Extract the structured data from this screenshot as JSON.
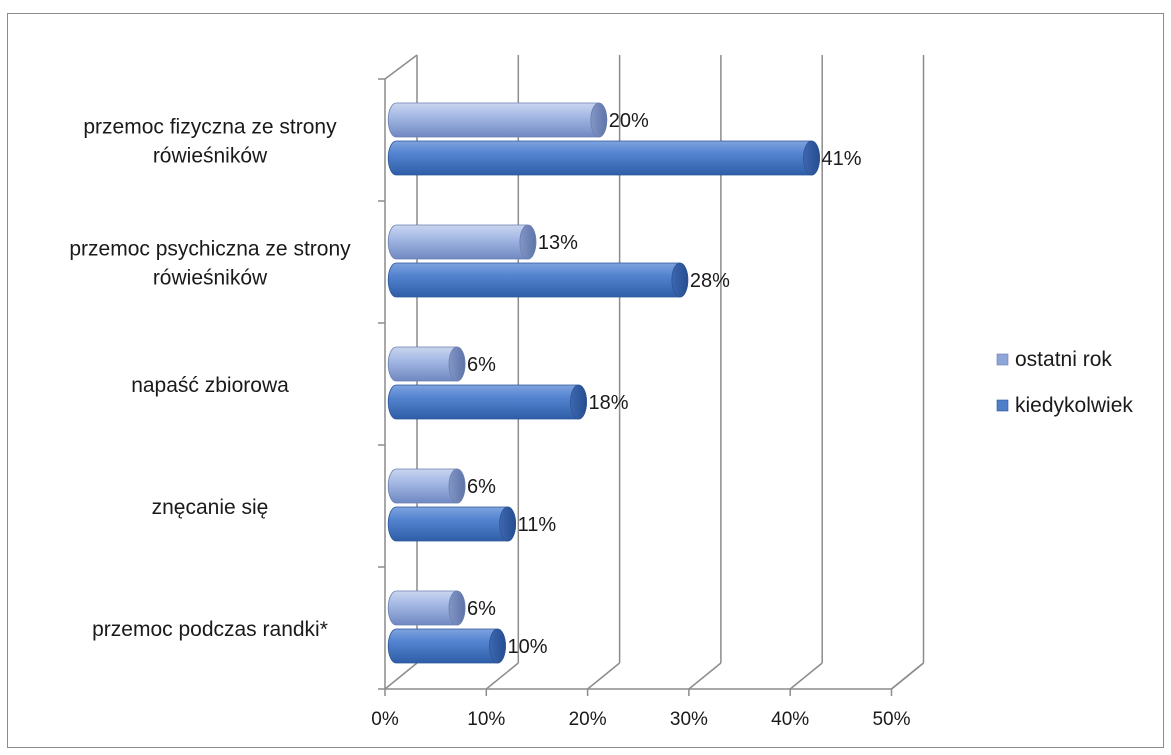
{
  "chart_data": {
    "type": "bar",
    "orientation": "horizontal",
    "style": "3d-cylinder",
    "categories": [
      [
        "przemoc fizyczna ze strony",
        "rówieśników"
      ],
      [
        "przemoc psychiczna ze strony",
        "rówieśników"
      ],
      [
        "napaść zbiorowa"
      ],
      [
        "znęcanie się"
      ],
      [
        "przemoc podczas randki*"
      ]
    ],
    "series": [
      {
        "name": "ostatni rok",
        "values": [
          20,
          13,
          6,
          6,
          6
        ],
        "labels": [
          "20%",
          "13%",
          "6%",
          "6%",
          "6%"
        ],
        "color": "#8ea5d8"
      },
      {
        "name": "kiedykolwiek",
        "values": [
          41,
          28,
          18,
          11,
          10
        ],
        "labels": [
          "41%",
          "28%",
          "18%",
          "11%",
          "10%"
        ],
        "color": "#4f7fc8"
      }
    ],
    "xlim": [
      0,
      50
    ],
    "xticks": [
      "0%",
      "10%",
      "20%",
      "30%",
      "40%",
      "50%"
    ],
    "grid": true,
    "legend": "right"
  }
}
